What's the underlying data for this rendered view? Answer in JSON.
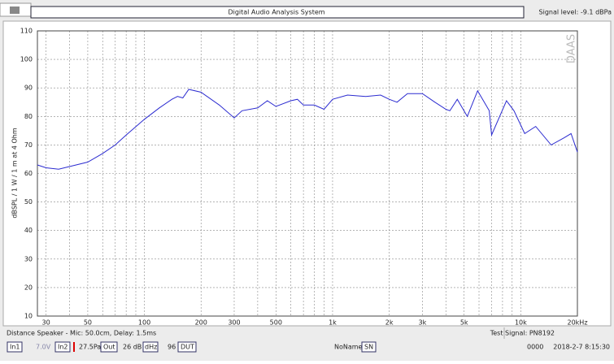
{
  "window": {
    "title": "Digital Audio Analysis System",
    "signal_level": "Signal level: -9.1 dBPa",
    "watermark": "DAAS"
  },
  "status": {
    "distance": "Distance Speaker - Mic: 50.0cm, Delay: 1.5ms",
    "test_signal": "Test Signal: PN8192"
  },
  "toolbar": {
    "in1": "In1",
    "voltage": "7.0V",
    "in2": "In2",
    "pressure": "27.5Pa",
    "out": "Out",
    "gain": "26 dB",
    "khz": "dHz",
    "rate": "96",
    "dut": "DUT",
    "name": "NoName",
    "sn": "SN",
    "serial": "0000",
    "datetime": "2018-2-7  8:15:30"
  },
  "chart_data": {
    "type": "line",
    "y_label": "dBSPL / 1 W / 1 m at 4 Ohm",
    "xscale": "log",
    "xlim": [
      27,
      20000
    ],
    "ylim": [
      10,
      110
    ],
    "xticks": [
      30,
      50,
      100,
      200,
      300,
      500,
      {
        "value": 1000,
        "label": "1k"
      },
      {
        "value": 2000,
        "label": "2k"
      },
      {
        "value": 3000,
        "label": "3k"
      },
      {
        "value": 5000,
        "label": "5k"
      },
      {
        "value": 10000,
        "label": "10k"
      },
      {
        "value": 20000,
        "label": "20kHz"
      }
    ],
    "xminor": [
      40,
      60,
      70,
      80,
      90,
      400,
      600,
      700,
      800,
      900,
      4000,
      6000,
      7000,
      8000,
      9000
    ],
    "yticks": [
      10,
      20,
      30,
      40,
      50,
      60,
      70,
      80,
      90,
      100,
      110
    ],
    "grid": true,
    "x": [
      27,
      30,
      35,
      50,
      60,
      70,
      80,
      100,
      120,
      140,
      150,
      160,
      172,
      200,
      250,
      300,
      330,
      400,
      450,
      500,
      600,
      650,
      700,
      800,
      900,
      1000,
      1200,
      1500,
      1800,
      2000,
      2200,
      2500,
      3000,
      3500,
      4000,
      4200,
      4600,
      5200,
      5900,
      6800,
      7000,
      8400,
      9200,
      10500,
      12000,
      14500,
      17000,
      18500,
      20000
    ],
    "series": [
      {
        "name": "dBSPL",
        "color": "#2b2bd0",
        "values": [
          63,
          62,
          61.5,
          64,
          67,
          70,
          73.5,
          79,
          83,
          86,
          87,
          86.5,
          89.5,
          88.5,
          84,
          79.5,
          82,
          83,
          85.5,
          83.5,
          85.5,
          86,
          84,
          84,
          82.5,
          86,
          87.5,
          87,
          87.5,
          86,
          85,
          88,
          88,
          85,
          82.5,
          82,
          86,
          80,
          89,
          82,
          73.5,
          85.5,
          82,
          74,
          76.5,
          70,
          72.5,
          74,
          67.5
        ]
      }
    ]
  }
}
